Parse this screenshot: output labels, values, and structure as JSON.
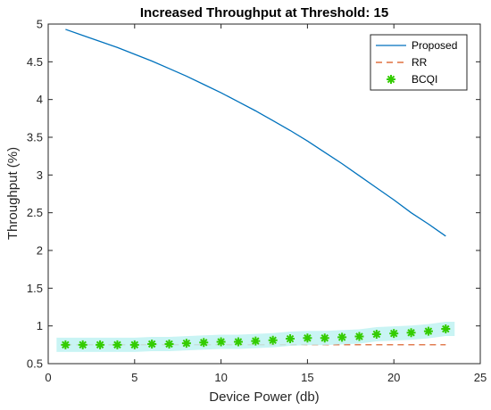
{
  "chart_data": {
    "type": "line",
    "title": "Increased Throughput at Threshold: 15",
    "xlabel": "Device Power (db)",
    "ylabel": "Throughput (%)",
    "xlim": [
      0,
      25
    ],
    "ylim": [
      0.5,
      5
    ],
    "xticks": [
      "0",
      "5",
      "10",
      "15",
      "20",
      "25"
    ],
    "yticks": [
      "0.5",
      "1",
      "1.5",
      "2",
      "2.5",
      "3",
      "3.5",
      "4",
      "4.5",
      "5"
    ],
    "grid": false,
    "legend_position": "top-right",
    "series": [
      {
        "name": "Proposed",
        "style": "solid-line",
        "color": "#0072BD",
        "x": [
          1,
          2,
          3,
          4,
          5,
          6,
          7,
          8,
          9,
          10,
          11,
          12,
          13,
          14,
          15,
          16,
          17,
          18,
          19,
          20,
          21,
          22,
          23
        ],
        "y": [
          4.93,
          4.85,
          4.77,
          4.69,
          4.6,
          4.51,
          4.41,
          4.31,
          4.2,
          4.09,
          3.97,
          3.85,
          3.72,
          3.59,
          3.45,
          3.3,
          3.15,
          2.99,
          2.83,
          2.67,
          2.5,
          2.35,
          2.19
        ]
      },
      {
        "name": "RR",
        "style": "dashed-line",
        "color": "#D95319",
        "x": [
          1,
          23
        ],
        "y": [
          0.75,
          0.75
        ]
      },
      {
        "name": "BCQI",
        "style": "star-markers",
        "color": "#33CC00",
        "halo": "#BFF2F2",
        "x": [
          1,
          2,
          3,
          4,
          5,
          6,
          7,
          8,
          9,
          10,
          11,
          12,
          13,
          14,
          15,
          16,
          17,
          18,
          19,
          20,
          21,
          22,
          23
        ],
        "y": [
          0.75,
          0.75,
          0.75,
          0.75,
          0.75,
          0.76,
          0.76,
          0.77,
          0.78,
          0.79,
          0.79,
          0.8,
          0.81,
          0.83,
          0.84,
          0.84,
          0.85,
          0.86,
          0.89,
          0.9,
          0.91,
          0.93,
          0.96
        ]
      }
    ]
  }
}
